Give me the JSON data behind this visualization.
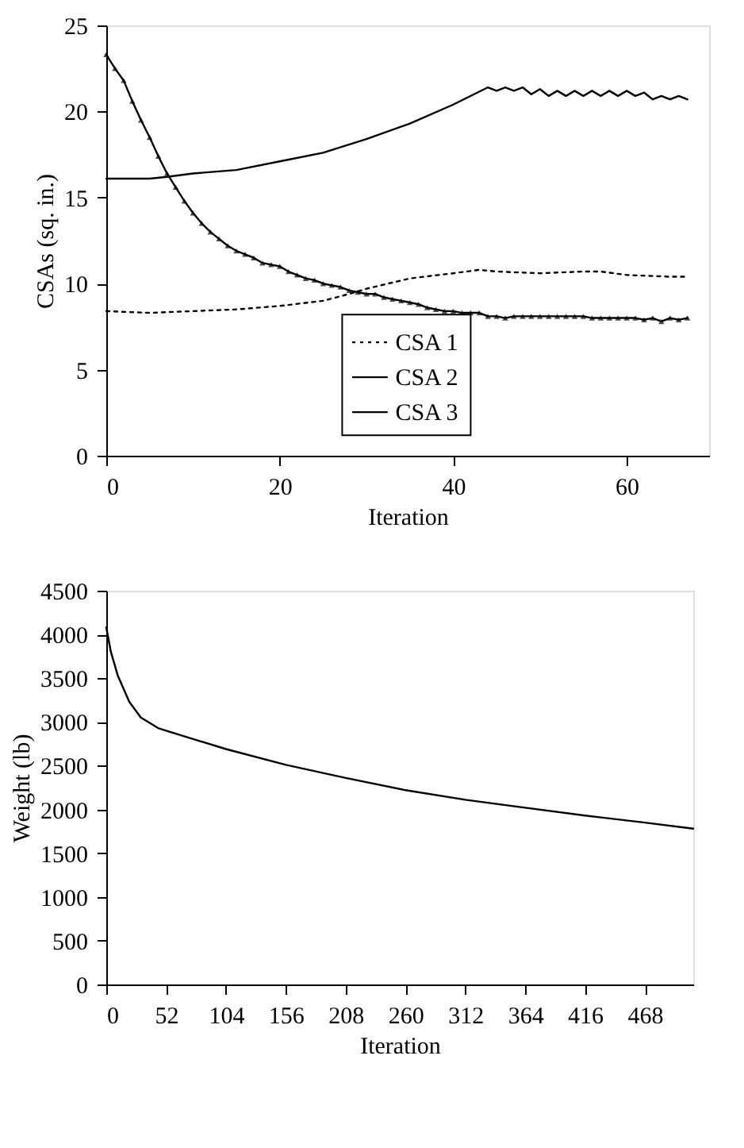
{
  "chart_data": [
    {
      "type": "line",
      "xlabel": "Iteration",
      "ylabel": "CSAs (sq. in.)",
      "xlim": [
        0,
        69.5
      ],
      "xticks": [
        0,
        20,
        40,
        60
      ],
      "ylim": [
        0,
        25
      ],
      "yticks": [
        0,
        5,
        10,
        15,
        20,
        25
      ],
      "grid": false,
      "legend": "bottom",
      "series": [
        {
          "name": "CSA 1",
          "color": "#000000",
          "line_style": "dotted",
          "marker": "none",
          "x": [
            0,
            5,
            10,
            15,
            20,
            25,
            28,
            30,
            35,
            40,
            43,
            45,
            50,
            55,
            57,
            60,
            65,
            67
          ],
          "values": [
            8.4,
            8.3,
            8.4,
            8.5,
            8.7,
            9.0,
            9.4,
            9.7,
            10.3,
            10.6,
            10.8,
            10.7,
            10.6,
            10.7,
            10.7,
            10.5,
            10.4,
            10.4
          ]
        },
        {
          "name": "CSA 2",
          "color": "#000000",
          "line_style": "solid",
          "marker": "triangle",
          "x": [
            0,
            1,
            2,
            3,
            4,
            5,
            6,
            7,
            8,
            9,
            10,
            11,
            12,
            13,
            14,
            15,
            16,
            17,
            18,
            19,
            20,
            21,
            22,
            23,
            24,
            25,
            26,
            27,
            28,
            29,
            30,
            31,
            32,
            33,
            34,
            35,
            36,
            37,
            38,
            39,
            40,
            41,
            42,
            43,
            44,
            45,
            46,
            47,
            48,
            49,
            50,
            51,
            52,
            53,
            54,
            55,
            56,
            57,
            58,
            59,
            60,
            61,
            62,
            63,
            64,
            65,
            66,
            67
          ],
          "values": [
            23.3,
            22.5,
            21.8,
            20.6,
            19.5,
            18.5,
            17.4,
            16.4,
            15.6,
            14.8,
            14.1,
            13.5,
            13.0,
            12.6,
            12.2,
            11.9,
            11.7,
            11.5,
            11.2,
            11.1,
            11.0,
            10.7,
            10.5,
            10.3,
            10.2,
            10.0,
            9.9,
            9.8,
            9.6,
            9.5,
            9.4,
            9.4,
            9.2,
            9.1,
            9.0,
            8.9,
            8.8,
            8.6,
            8.5,
            8.4,
            8.4,
            8.3,
            8.3,
            8.3,
            8.1,
            8.1,
            8.0,
            8.1,
            8.1,
            8.1,
            8.1,
            8.1,
            8.1,
            8.1,
            8.1,
            8.1,
            8.0,
            8.0,
            8.0,
            8.0,
            8.0,
            8.0,
            7.9,
            8.0,
            7.8,
            8.0,
            7.9,
            8.0
          ]
        },
        {
          "name": "CSA 3",
          "color": "#000000",
          "line_style": "solid",
          "marker": "none",
          "x": [
            0,
            5,
            7,
            10,
            15,
            20,
            25,
            30,
            35,
            40,
            44,
            45,
            46,
            47,
            48,
            49,
            50,
            51,
            52,
            53,
            54,
            55,
            56,
            57,
            58,
            59,
            60,
            61,
            62,
            63,
            64,
            65,
            66,
            67
          ],
          "values": [
            16.1,
            16.1,
            16.2,
            16.4,
            16.6,
            17.1,
            17.6,
            18.4,
            19.3,
            20.4,
            21.4,
            21.2,
            21.4,
            21.2,
            21.4,
            21.0,
            21.3,
            20.9,
            21.2,
            20.9,
            21.2,
            20.9,
            21.2,
            20.9,
            21.2,
            20.9,
            21.2,
            20.9,
            21.1,
            20.7,
            20.9,
            20.7,
            20.9,
            20.7
          ]
        }
      ]
    },
    {
      "type": "line",
      "xlabel": "Iteration",
      "ylabel": "Weight (lb)",
      "xlim": [
        0,
        510
      ],
      "xticks": [
        0,
        52,
        104,
        156,
        208,
        260,
        312,
        364,
        416,
        468
      ],
      "ylim": [
        0,
        4500
      ],
      "yticks": [
        0,
        500,
        1000,
        1500,
        2000,
        2500,
        3000,
        3500,
        4000,
        4500
      ],
      "grid": false,
      "legend": false,
      "series": [
        {
          "color": "#000000",
          "line_style": "solid",
          "marker": "none",
          "x": [
            0,
            4,
            10,
            20,
            30,
            45,
            52,
            104,
            156,
            208,
            260,
            312,
            364,
            416,
            468,
            510
          ],
          "values": [
            4080,
            3800,
            3530,
            3230,
            3050,
            2930,
            2900,
            2690,
            2510,
            2360,
            2220,
            2110,
            2020,
            1930,
            1850,
            1780
          ]
        }
      ]
    }
  ]
}
